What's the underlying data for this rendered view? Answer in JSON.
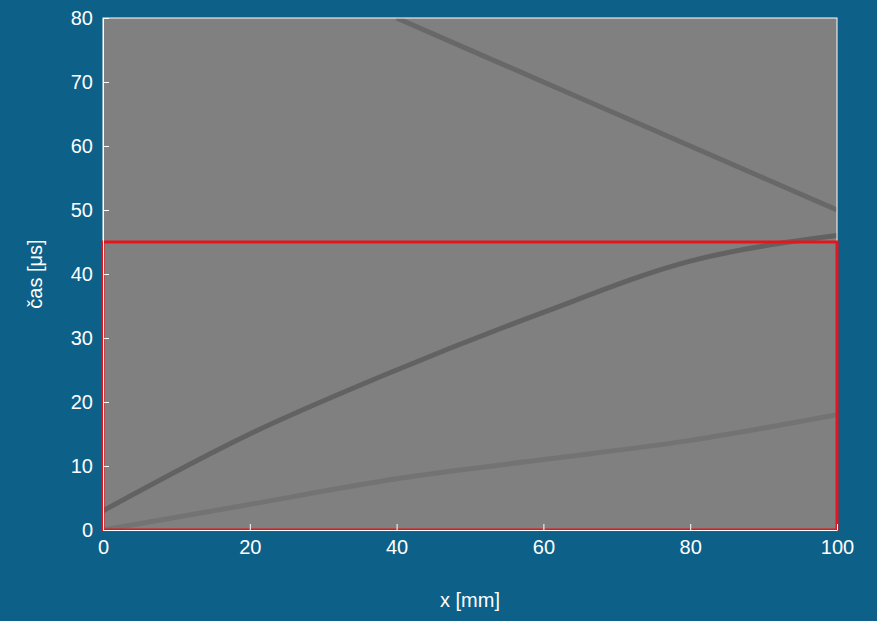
{
  "chart_data": {
    "type": "image",
    "x_label": "x [mm]",
    "y_label": "čas [μs]",
    "xlim": [
      0,
      100
    ],
    "ylim": [
      0,
      80
    ],
    "xticks": [
      0,
      20,
      40,
      60,
      80,
      100
    ],
    "yticks": [
      0,
      10,
      20,
      30,
      40,
      50,
      60,
      70,
      80
    ],
    "color": "#808080",
    "series": [
      {
        "color": "#555555",
        "x": [
          0,
          20,
          40,
          60,
          80,
          100
        ],
        "values": [
          3,
          15,
          25,
          34,
          42,
          46
        ]
      },
      {
        "color": "#6e6e6e",
        "x": [
          0,
          20,
          40,
          60,
          80,
          100
        ],
        "values": [
          0,
          4,
          8,
          11,
          14,
          18
        ]
      },
      {
        "color": "#5e5e5e",
        "x": [
          40,
          60,
          80,
          100
        ],
        "values": [
          80,
          70,
          60,
          50
        ]
      }
    ],
    "highlight": {
      "x": [
        0,
        100
      ],
      "y": [
        0,
        45
      ],
      "color": "#e8141b"
    }
  }
}
